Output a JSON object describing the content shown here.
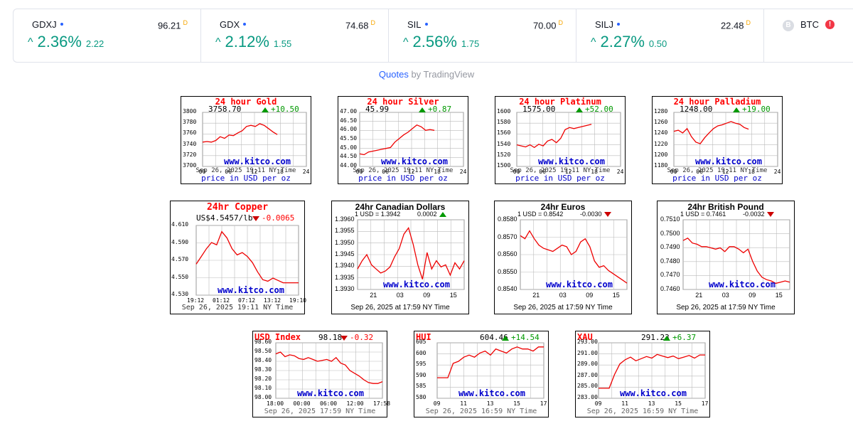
{
  "ticker": [
    {
      "symbol": "GDXJ",
      "price": "96.21",
      "flag": "D",
      "change_pct": "2.36%",
      "change_abs": "2.22"
    },
    {
      "symbol": "GDX",
      "price": "74.68",
      "flag": "D",
      "change_pct": "2.12%",
      "change_abs": "1.55"
    },
    {
      "symbol": "SIL",
      "price": "70.00",
      "flag": "D",
      "change_pct": "2.56%",
      "change_abs": "1.75"
    },
    {
      "symbol": "SILJ",
      "price": "22.48",
      "flag": "D",
      "change_pct": "2.27%",
      "change_abs": "0.50"
    }
  ],
  "btc": {
    "symbol": "BTC",
    "logo": "B",
    "warning": "!"
  },
  "credit": {
    "link": "Quotes",
    "rest": " by TradingView"
  },
  "colors": {
    "up": "#089981",
    "accent": "#2962ff",
    "kitco_red": "#ff0000",
    "kitco_blue": "#0000cc"
  },
  "panels": [
    {
      "id": "gold",
      "title": "24 hour Gold",
      "price": "3758.70",
      "change": "+10.50",
      "dir": "up",
      "yticks": [
        "3800",
        "3780",
        "3760",
        "3740",
        "3720",
        "3700"
      ],
      "xticks": [
        "00",
        "06",
        "12",
        "18",
        "24"
      ],
      "footer": "Sep 26, 2025 19:11 NY Time",
      "usd": "price in USD per oz",
      "watermark": "www.kitco.com",
      "chart_data": {
        "type": "line",
        "ylim": [
          3700,
          3800
        ],
        "x": [
          0,
          1,
          2,
          3,
          4,
          5,
          6,
          7,
          8,
          9,
          10,
          11,
          12,
          13,
          14,
          15,
          16,
          17
        ],
        "values": [
          3745,
          3746,
          3745,
          3748,
          3755,
          3752,
          3758,
          3757,
          3762,
          3766,
          3774,
          3776,
          3774,
          3779,
          3776,
          3770,
          3764,
          3759
        ]
      }
    },
    {
      "id": "silver",
      "title": "24 hour Silver",
      "price": "45.99",
      "change": "+0.87",
      "dir": "up",
      "yticks": [
        "47.00",
        "46.50",
        "46.00",
        "45.50",
        "45.00",
        "44.50",
        "44.00"
      ],
      "xticks": [
        "00",
        "06",
        "12",
        "18",
        "24"
      ],
      "footer": "Sep 26, 2025 19:11 NY Time",
      "usd": "price in USD per oz",
      "watermark": "www.kitco.com",
      "chart_data": {
        "type": "line",
        "ylim": [
          44.0,
          47.0
        ],
        "x": [
          0,
          1,
          2,
          3,
          4,
          5,
          6,
          7,
          8,
          9,
          10,
          11,
          12,
          13,
          14,
          15,
          16,
          17
        ],
        "values": [
          44.7,
          44.65,
          44.8,
          44.85,
          44.9,
          44.95,
          45.0,
          45.05,
          45.35,
          45.55,
          45.75,
          45.9,
          46.1,
          46.3,
          46.2,
          46.0,
          46.05,
          46.0
        ]
      }
    },
    {
      "id": "platinum",
      "title": "24 hour Platinum",
      "price": "1575.00",
      "change": "+52.00",
      "dir": "up",
      "yticks": [
        "1600",
        "1580",
        "1560",
        "1540",
        "1520",
        "1500"
      ],
      "xticks": [
        "00",
        "06",
        "12",
        "18",
        "24"
      ],
      "footer": "Sep 26, 2025 19:11 NY Time",
      "usd": "price in USD per oz",
      "watermark": "www.kitco.com",
      "chart_data": {
        "type": "line",
        "ylim": [
          1500,
          1600
        ],
        "x": [
          0,
          1,
          2,
          3,
          4,
          5,
          6,
          7,
          8,
          9,
          10,
          11,
          12,
          13,
          14,
          15,
          16,
          17
        ],
        "values": [
          1540,
          1538,
          1536,
          1540,
          1535,
          1541,
          1538,
          1547,
          1550,
          1544,
          1552,
          1568,
          1572,
          1570,
          1572,
          1574,
          1576,
          1578
        ]
      }
    },
    {
      "id": "palladium",
      "title": "24 hour Palladium",
      "price": "1248.00",
      "change": "+19.00",
      "dir": "up",
      "yticks": [
        "1280",
        "1260",
        "1240",
        "1220",
        "1200",
        "1180"
      ],
      "xticks": [
        "00",
        "06",
        "12",
        "18",
        "24"
      ],
      "footer": "Sep 26, 2025 19:11 NY Time",
      "usd": "price in USD per oz",
      "watermark": "www.kitco.com",
      "chart_data": {
        "type": "line",
        "ylim": [
          1180,
          1280
        ],
        "x": [
          0,
          1,
          2,
          3,
          4,
          5,
          6,
          7,
          8,
          9,
          10,
          11,
          12,
          13,
          14,
          15,
          16,
          17
        ],
        "values": [
          1245,
          1247,
          1242,
          1250,
          1235,
          1225,
          1222,
          1233,
          1242,
          1250,
          1255,
          1257,
          1260,
          1263,
          1260,
          1258,
          1252,
          1249
        ]
      }
    },
    {
      "id": "copper",
      "title": "24hr Copper",
      "price": "US$4.5457/lb",
      "change": "-0.0065",
      "dir": "dn",
      "yticks": [
        "4.610",
        "4.590",
        "4.570",
        "4.550",
        "4.530"
      ],
      "xticks": [
        "19:12",
        "01:12",
        "07:12",
        "13:12",
        "19:10"
      ],
      "footer": "Sep 26, 2025 19:11 NY Time",
      "usd": "",
      "watermark": "www.kitco.com",
      "chart_data": {
        "type": "line",
        "ylim": [
          4.53,
          4.62
        ],
        "x": [
          0,
          1,
          2,
          3,
          4,
          5,
          6,
          7,
          8,
          9,
          10,
          11,
          12,
          13,
          14,
          15,
          16,
          17,
          18,
          19,
          20
        ],
        "values": [
          4.57,
          4.58,
          4.59,
          4.598,
          4.595,
          4.612,
          4.604,
          4.59,
          4.582,
          4.585,
          4.58,
          4.572,
          4.56,
          4.55,
          4.548,
          4.552,
          4.549,
          4.546,
          4.546,
          4.546,
          4.546
        ]
      }
    },
    {
      "id": "cad",
      "title": "24hr Canadian Dollars",
      "price": "1 USD = 1.3942",
      "change": "0.0002",
      "dir": "up",
      "yticks": [
        "1.3960",
        "1.3955",
        "1.3950",
        "1.3945",
        "1.3940",
        "1.3935",
        "1.3930"
      ],
      "xticks": [
        "21",
        "03",
        "09",
        "15"
      ],
      "footer": "Sep 26, 2025 at 17:59 NY Time",
      "usd": "",
      "watermark": "www.kitco.com",
      "chart_data": {
        "type": "line",
        "ylim": [
          1.3928,
          1.3962
        ],
        "x": [
          0,
          1,
          2,
          3,
          4,
          5,
          6,
          7,
          8,
          9,
          10,
          11,
          12,
          13,
          14,
          15,
          16,
          17,
          18,
          19,
          20,
          21,
          22,
          23
        ],
        "values": [
          1.3938,
          1.3942,
          1.3945,
          1.394,
          1.3938,
          1.3936,
          1.3937,
          1.3939,
          1.3944,
          1.3948,
          1.3955,
          1.3958,
          1.395,
          1.394,
          1.3933,
          1.3946,
          1.3938,
          1.3942,
          1.3939,
          1.394,
          1.3935,
          1.3941,
          1.3938,
          1.3942
        ]
      }
    },
    {
      "id": "eur",
      "title": "24hr Euros",
      "price": "1 USD = 0.8542",
      "change": "-0.0030",
      "dir": "dn",
      "yticks": [
        "0.8580",
        "0.8570",
        "0.8560",
        "0.8550",
        "0.8540"
      ],
      "xticks": [
        "21",
        "03",
        "09",
        "15"
      ],
      "footer": "Sep 26, 2025 at 17:59 NY Time",
      "usd": "",
      "watermark": "www.kitco.com",
      "chart_data": {
        "type": "line",
        "ylim": [
          0.8538,
          0.8582
        ],
        "x": [
          0,
          1,
          2,
          3,
          4,
          5,
          6,
          7,
          8,
          9,
          10,
          11,
          12,
          13,
          14,
          15,
          16,
          17,
          18,
          19,
          20,
          21,
          22,
          23
        ],
        "values": [
          0.8572,
          0.857,
          0.8575,
          0.857,
          0.8566,
          0.8564,
          0.8563,
          0.8562,
          0.8564,
          0.8566,
          0.8565,
          0.856,
          0.8562,
          0.8568,
          0.857,
          0.8565,
          0.8556,
          0.8552,
          0.8553,
          0.855,
          0.8548,
          0.8546,
          0.8544,
          0.8542
        ]
      }
    },
    {
      "id": "gbp",
      "title": "24hr British Pound",
      "price": "1 USD = 0.7461",
      "change": "-0.0032",
      "dir": "dn",
      "yticks": [
        "0.7510",
        "0.7500",
        "0.7490",
        "0.7480",
        "0.7470",
        "0.7460"
      ],
      "xticks": [
        "21",
        "03",
        "09",
        "15"
      ],
      "footer": "Sep 26, 2025 at 17:59 NY Time",
      "usd": "",
      "watermark": "www.kitco.com",
      "chart_data": {
        "type": "line",
        "ylim": [
          0.7455,
          0.7512
        ],
        "x": [
          0,
          1,
          2,
          3,
          4,
          5,
          6,
          7,
          8,
          9,
          10,
          11,
          12,
          13,
          14,
          15,
          16,
          17,
          18,
          19,
          20,
          21,
          22,
          23
        ],
        "values": [
          0.7495,
          0.7497,
          0.7493,
          0.7492,
          0.749,
          0.749,
          0.7489,
          0.7488,
          0.7489,
          0.7486,
          0.749,
          0.749,
          0.7488,
          0.7485,
          0.7488,
          0.7478,
          0.747,
          0.7465,
          0.7463,
          0.7462,
          0.746,
          0.7461,
          0.7462,
          0.7461
        ]
      }
    },
    {
      "id": "usdx",
      "title": "USD Index",
      "price": "98.18",
      "change": "-0.32",
      "dir": "dn",
      "yticks": [
        "98.60",
        "98.50",
        "98.40",
        "98.30",
        "98.20",
        "98.10",
        "98.00"
      ],
      "xticks": [
        "18:00",
        "00:00",
        "06:00",
        "12:00",
        "17:58"
      ],
      "footer": "Sep 26, 2025 17:59 NY Time",
      "usd": "",
      "watermark": "www.kitco.com",
      "chart_data": {
        "type": "line",
        "ylim": [
          98.0,
          98.6
        ],
        "x": [
          0,
          1,
          2,
          3,
          4,
          5,
          6,
          7,
          8,
          9,
          10,
          11,
          12,
          13,
          14,
          15,
          16,
          17,
          18,
          19,
          20,
          21,
          22,
          23
        ],
        "values": [
          98.48,
          98.5,
          98.45,
          98.47,
          98.46,
          98.43,
          98.42,
          98.44,
          98.42,
          98.4,
          98.41,
          98.42,
          98.4,
          98.44,
          98.38,
          98.36,
          98.3,
          98.27,
          98.24,
          98.2,
          98.17,
          98.16,
          98.16,
          98.18
        ]
      }
    },
    {
      "id": "hui",
      "title": "HUI",
      "price": "604.46",
      "change": "+14.54",
      "dir": "up",
      "yticks": [
        "605",
        "600",
        "595",
        "590",
        "585",
        "580"
      ],
      "xticks": [
        "09",
        "11",
        "13",
        "15",
        "17"
      ],
      "footer": "Sep 26, 2025 16:59 NY Time",
      "usd": "",
      "watermark": "www.kitco.com",
      "chart_data": {
        "type": "line",
        "ylim": [
          580,
          607
        ],
        "x": [
          0,
          1,
          2,
          3,
          4,
          5,
          6,
          7,
          8,
          9,
          10,
          11,
          12,
          13,
          14,
          15,
          16,
          17,
          18,
          19,
          20
        ],
        "values": [
          590,
          590,
          590,
          597,
          598,
          600,
          601,
          600,
          602,
          603,
          601,
          604,
          603,
          602,
          604,
          605,
          604,
          604,
          603,
          605,
          605
        ]
      }
    },
    {
      "id": "xau",
      "title": "XAU",
      "price": "291.23",
      "change": "+6.37",
      "dir": "up",
      "yticks": [
        "293.00",
        "291.00",
        "289.00",
        "287.00",
        "285.00",
        "283.00"
      ],
      "xticks": [
        "09",
        "11",
        "13",
        "15",
        "17"
      ],
      "footer": "Sep 26, 2025 16:59 NY Time",
      "usd": "",
      "watermark": "www.kitco.com",
      "chart_data": {
        "type": "line",
        "ylim": [
          283,
          293.5
        ],
        "x": [
          0,
          1,
          2,
          3,
          4,
          5,
          6,
          7,
          8,
          9,
          10,
          11,
          12,
          13,
          14,
          15,
          16,
          17,
          18,
          19,
          20
        ],
        "values": [
          284.9,
          284.9,
          284.9,
          287.5,
          289.5,
          290.3,
          290.8,
          290.1,
          290.5,
          290.9,
          290.6,
          291.3,
          291.0,
          290.7,
          291.0,
          290.5,
          290.8,
          291.1,
          290.6,
          291.2,
          291.2
        ]
      }
    }
  ]
}
